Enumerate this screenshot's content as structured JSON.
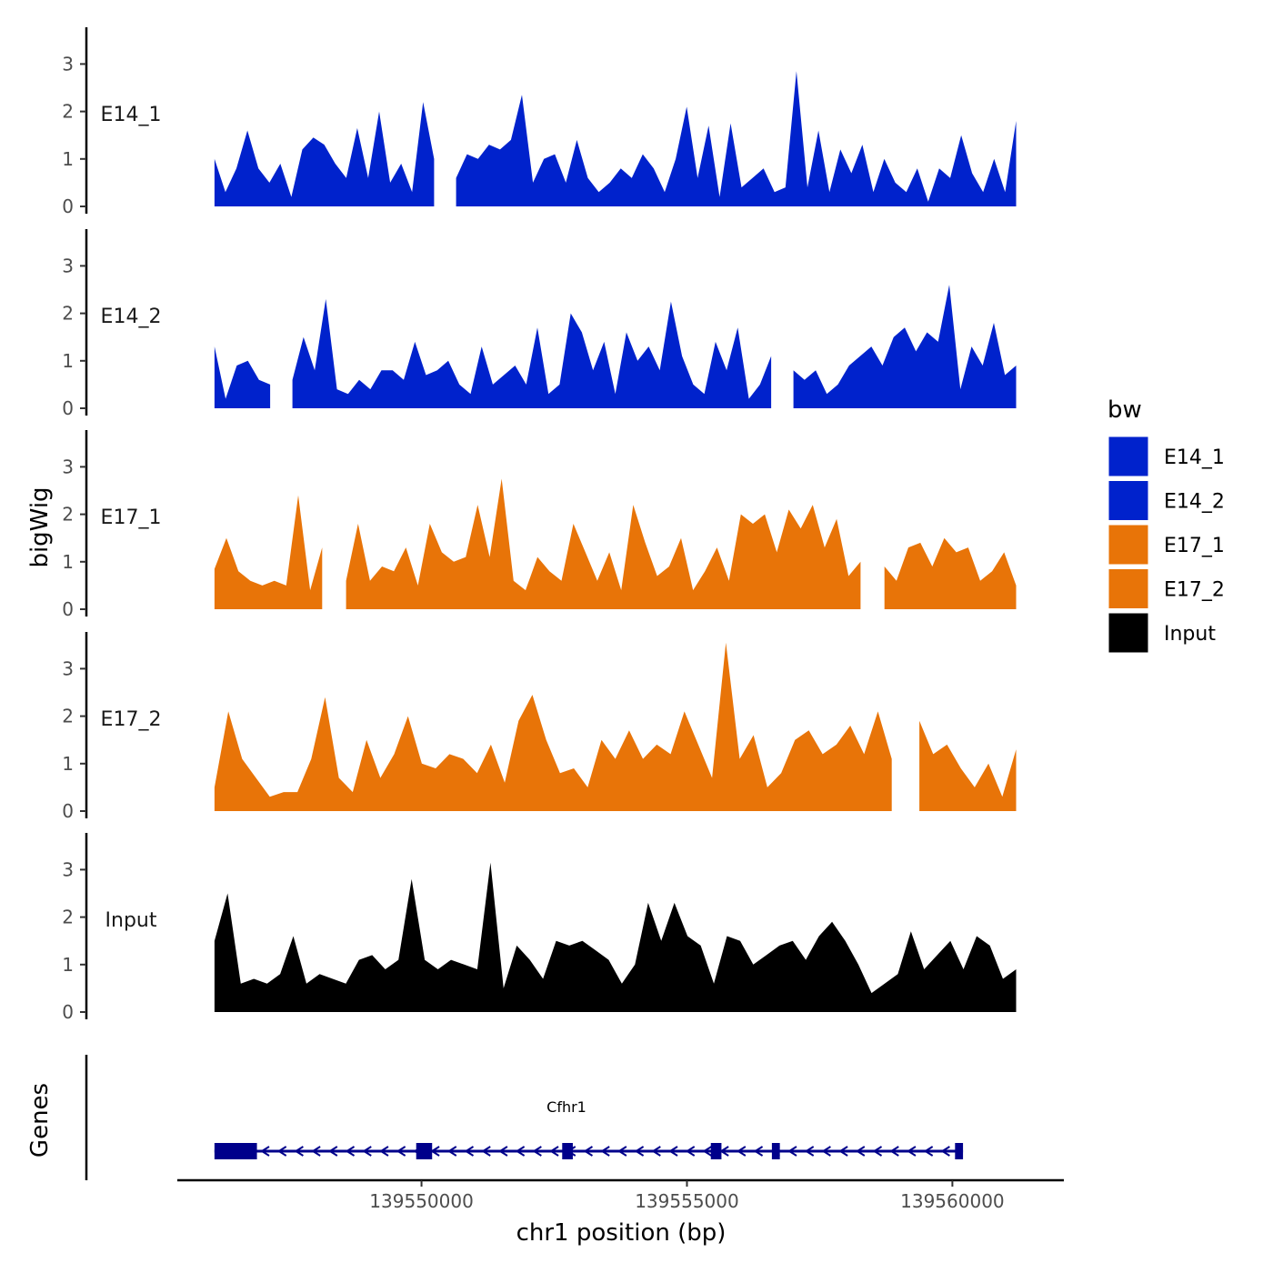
{
  "chart_data": {
    "type": "area",
    "chromosome": "chr1",
    "xlabel": "chr1 position (bp)",
    "ylabel": "bigWig",
    "xlim": [
      139545400,
      139562100
    ],
    "x_ticks": [
      139550000,
      139555000,
      139560000
    ],
    "x_tick_labels": [
      "139550000",
      "139555000",
      "139560000"
    ],
    "ylim": [
      0,
      3.8
    ],
    "y_ticks": [
      0,
      1,
      2,
      3
    ],
    "y_tick_labels": [
      "0",
      "1",
      "2",
      "3"
    ],
    "x_start": 139546100,
    "x_end": 139561200,
    "legend": {
      "title": "bw",
      "entries": [
        {
          "label": "E14_1",
          "color": "#0022cc"
        },
        {
          "label": "E14_2",
          "color": "#0022cc"
        },
        {
          "label": "E17_1",
          "color": "#e87408"
        },
        {
          "label": "E17_2",
          "color": "#e87408"
        },
        {
          "label": "Input",
          "color": "#000000"
        }
      ]
    },
    "series": [
      {
        "name": "E14_1",
        "label": "E14_1",
        "color": "#0022cc",
        "values": [
          1.0,
          0.3,
          0.8,
          1.6,
          0.8,
          0.5,
          0.9,
          0.2,
          1.2,
          1.45,
          1.3,
          0.9,
          0.6,
          1.65,
          0.6,
          2.0,
          0.5,
          0.9,
          0.3,
          2.2,
          1.0,
          null,
          0.6,
          1.1,
          1.0,
          1.3,
          1.2,
          1.4,
          2.35,
          0.5,
          1.0,
          1.1,
          0.5,
          1.4,
          0.6,
          0.3,
          0.5,
          0.8,
          0.6,
          1.1,
          0.8,
          0.3,
          1.0,
          2.1,
          0.6,
          1.7,
          0.2,
          1.75,
          0.4,
          0.6,
          0.8,
          0.3,
          0.4,
          2.85,
          0.4,
          1.6,
          0.3,
          1.2,
          0.7,
          1.3,
          0.3,
          1.0,
          0.5,
          0.3,
          0.8,
          0.1,
          0.8,
          0.6,
          1.5,
          0.7,
          0.3,
          1.0,
          0.3,
          1.8
        ]
      },
      {
        "name": "E14_2",
        "label": "E14_2",
        "color": "#0022cc",
        "values": [
          1.3,
          0.2,
          0.9,
          1.0,
          0.6,
          0.5,
          null,
          0.6,
          1.5,
          0.8,
          2.3,
          0.4,
          0.3,
          0.6,
          0.4,
          0.8,
          0.8,
          0.6,
          1.4,
          0.7,
          0.8,
          1.0,
          0.5,
          0.3,
          1.3,
          0.5,
          0.7,
          0.9,
          0.5,
          1.7,
          0.3,
          0.5,
          2.0,
          1.6,
          0.8,
          1.4,
          0.3,
          1.6,
          1.0,
          1.3,
          0.8,
          2.25,
          1.1,
          0.5,
          0.3,
          1.4,
          0.8,
          1.7,
          0.2,
          0.5,
          1.1,
          null,
          0.8,
          0.6,
          0.8,
          0.3,
          0.5,
          0.9,
          1.1,
          1.3,
          0.9,
          1.5,
          1.7,
          1.2,
          1.6,
          1.4,
          2.6,
          0.4,
          1.3,
          0.9,
          1.8,
          0.7,
          0.9
        ]
      },
      {
        "name": "E17_1",
        "label": "E17_1",
        "color": "#e87408",
        "values": [
          0.85,
          1.5,
          0.8,
          0.6,
          0.5,
          0.6,
          0.5,
          2.4,
          0.4,
          1.3,
          null,
          0.6,
          1.8,
          0.6,
          0.9,
          0.8,
          1.3,
          0.5,
          1.8,
          1.2,
          1.0,
          1.1,
          2.2,
          1.1,
          2.75,
          0.6,
          0.4,
          1.1,
          0.8,
          0.6,
          1.8,
          1.2,
          0.6,
          1.2,
          0.4,
          2.2,
          1.4,
          0.7,
          0.9,
          1.5,
          0.4,
          0.8,
          1.3,
          0.6,
          2.0,
          1.8,
          2.0,
          1.2,
          2.1,
          1.7,
          2.2,
          1.3,
          1.9,
          0.7,
          1.0,
          null,
          0.9,
          0.6,
          1.3,
          1.4,
          0.9,
          1.5,
          1.2,
          1.3,
          0.6,
          0.8,
          1.2,
          0.5
        ]
      },
      {
        "name": "E17_2",
        "label": "E17_2",
        "color": "#e87408",
        "values": [
          0.5,
          2.1,
          1.1,
          0.7,
          0.3,
          0.4,
          0.4,
          1.1,
          2.4,
          0.7,
          0.4,
          1.5,
          0.7,
          1.2,
          2.0,
          1.0,
          0.9,
          1.2,
          1.1,
          0.8,
          1.4,
          0.6,
          1.9,
          2.45,
          1.5,
          0.8,
          0.9,
          0.5,
          1.5,
          1.1,
          1.7,
          1.1,
          1.4,
          1.2,
          2.1,
          1.4,
          0.7,
          3.55,
          1.1,
          1.6,
          0.5,
          0.8,
          1.5,
          1.7,
          1.2,
          1.4,
          1.8,
          1.2,
          2.1,
          1.1,
          null,
          1.9,
          1.2,
          1.4,
          0.9,
          0.5,
          1.0,
          0.3,
          1.3
        ]
      },
      {
        "name": "Input",
        "label": "Input",
        "color": "#000000",
        "values": [
          1.5,
          2.5,
          0.6,
          0.7,
          0.6,
          0.8,
          1.6,
          0.6,
          0.8,
          0.7,
          0.6,
          1.1,
          1.2,
          0.9,
          1.1,
          2.8,
          1.1,
          0.9,
          1.1,
          1.0,
          0.9,
          3.15,
          0.5,
          1.4,
          1.1,
          0.7,
          1.5,
          1.4,
          1.5,
          1.3,
          1.1,
          0.6,
          1.0,
          2.3,
          1.5,
          2.3,
          1.6,
          1.4,
          0.6,
          1.6,
          1.5,
          1.0,
          1.2,
          1.4,
          1.5,
          1.1,
          1.6,
          1.9,
          1.5,
          1.0,
          0.4,
          0.6,
          0.8,
          1.7,
          0.9,
          1.2,
          1.5,
          0.9,
          1.6,
          1.4,
          0.7,
          0.9
        ]
      }
    ],
    "genes": {
      "title": "Genes",
      "gene_name": "Cfhr1",
      "strand": "-",
      "range": [
        139546100,
        139560200
      ],
      "exons": [
        [
          139546100,
          139546900
        ],
        [
          139549900,
          139550200
        ],
        [
          139552650,
          139552850
        ],
        [
          139555450,
          139555650
        ],
        [
          139556600,
          139556750
        ],
        [
          139560050,
          139560200
        ]
      ]
    }
  }
}
